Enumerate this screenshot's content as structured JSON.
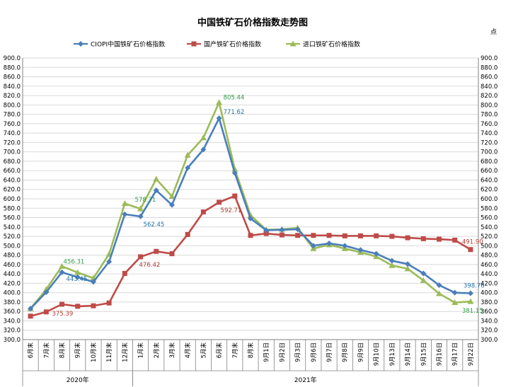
{
  "chart_data": {
    "type": "line",
    "title": "中国铁矿石价格指数走势图",
    "unit_label": "点",
    "ylim": [
      300,
      900
    ],
    "ytick_step": 20,
    "yticks": [
      "300.0",
      "320.0",
      "340.0",
      "360.0",
      "380.0",
      "400.0",
      "420.0",
      "440.0",
      "460.0",
      "480.0",
      "500.0",
      "520.0",
      "540.0",
      "560.0",
      "580.0",
      "600.0",
      "620.0",
      "640.0",
      "660.0",
      "680.0",
      "700.0",
      "720.0",
      "740.0",
      "760.0",
      "780.0",
      "800.0",
      "820.0",
      "840.0",
      "860.0",
      "880.0",
      "900.0"
    ],
    "grid": true,
    "legend_position": "top",
    "categories": [
      "6月末",
      "7月末",
      "8月末",
      "9月末",
      "10月末",
      "11月末",
      "12月末",
      "1月末",
      "2月末",
      "3月末",
      "4月末",
      "5月末",
      "6月末",
      "7月末",
      "8月末",
      "9月1日",
      "9月2日",
      "9月3日",
      "9月6日",
      "9月7日",
      "9月8日",
      "9月9日",
      "9月10日",
      "9月13日",
      "9月14日",
      "9月15日",
      "9月16日",
      "9月17日",
      "9月22日"
    ],
    "groups": [
      {
        "label": "2020年",
        "start": 0,
        "end": 6
      },
      {
        "label": "2021年",
        "start": 7,
        "end": 28
      }
    ],
    "series": [
      {
        "name": "CIOPI中国铁矿石价格指数",
        "color": "#4a7ebb",
        "marker": "diamond",
        "values": [
          366,
          401,
          443.45,
          433,
          423,
          466,
          567,
          562.45,
          618,
          587,
          666,
          705,
          771.62,
          655,
          558,
          533,
          534,
          535,
          500,
          505,
          500,
          491,
          483,
          468,
          461,
          441,
          416,
          400,
          398.76
        ]
      },
      {
        "name": "国产铁矿石价格指数",
        "color": "#be4b48",
        "marker": "square",
        "values": [
          350,
          359,
          375.39,
          371,
          372,
          378,
          441,
          476.42,
          488,
          483,
          524,
          572,
          592.71,
          606,
          522,
          526,
          523,
          522,
          522,
          522,
          521,
          521,
          521,
          520,
          517,
          515,
          514,
          512,
          491.9
        ]
      },
      {
        "name": "进口铁矿石价格指数",
        "color": "#9bbb59",
        "marker": "triangle",
        "values": [
          366,
          407,
          456.31,
          443,
          431,
          482,
          590,
          578.71,
          642,
          605,
          693,
          730,
          805.44,
          663,
          565,
          534,
          535,
          538,
          494,
          502,
          494,
          486,
          477,
          458,
          451,
          426,
          398,
          379,
          381.15
        ]
      }
    ],
    "data_labels": [
      {
        "series": 0,
        "index": 2,
        "text": "443.45"
      },
      {
        "series": 0,
        "index": 7,
        "text": "562.45"
      },
      {
        "series": 0,
        "index": 12,
        "text": "771.62"
      },
      {
        "series": 0,
        "index": 28,
        "text": "398.76"
      },
      {
        "series": 1,
        "index": 2,
        "text": "375.39"
      },
      {
        "series": 1,
        "index": 7,
        "text": "476.42"
      },
      {
        "series": 1,
        "index": 12,
        "text": "592.71"
      },
      {
        "series": 1,
        "index": 28,
        "text": "491.90"
      },
      {
        "series": 2,
        "index": 2,
        "text": "456.31"
      },
      {
        "series": 2,
        "index": 7,
        "text": "578.71"
      },
      {
        "series": 2,
        "index": 12,
        "text": "805.44"
      },
      {
        "series": 2,
        "index": 28,
        "text": "381.15"
      }
    ]
  }
}
